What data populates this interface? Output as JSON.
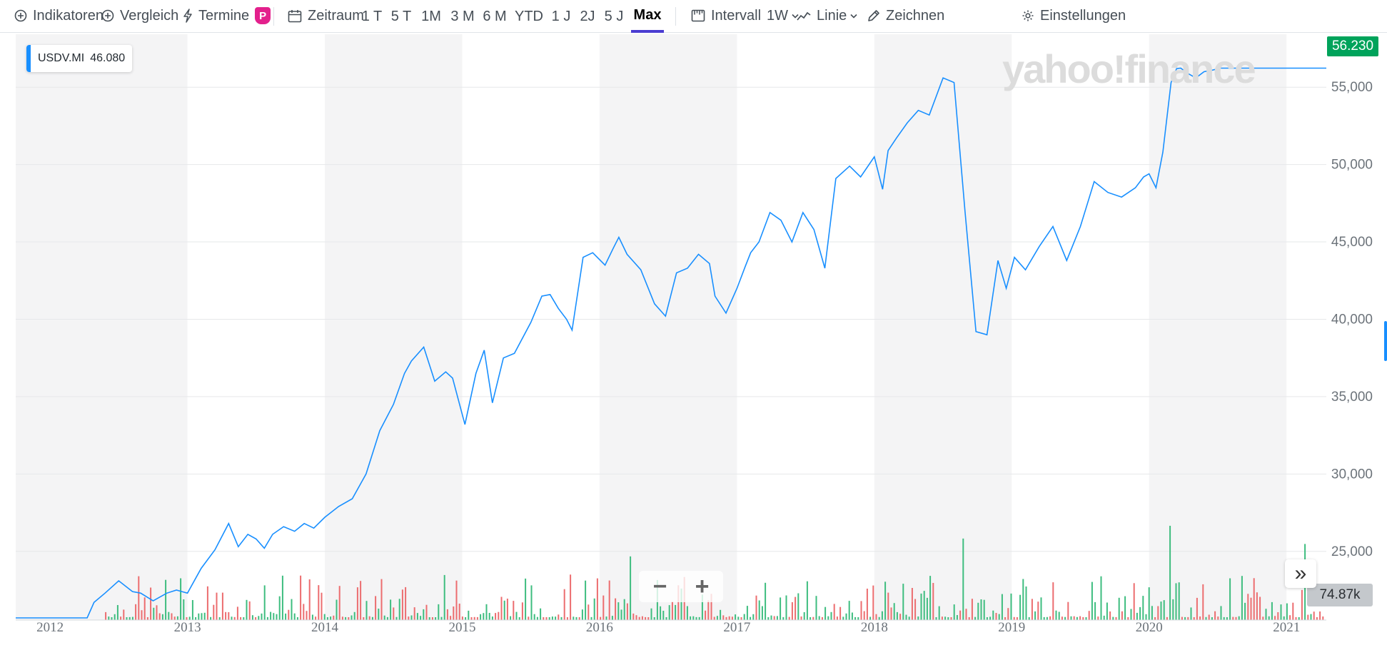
{
  "toolbar": {
    "indicators_label": "Indikatoren",
    "compare_label": "Vergleich",
    "events_label": "Termine",
    "events_badge": "P",
    "range_label": "Zeitraum",
    "ranges": [
      "1 T",
      "5 T",
      "1M",
      "3 M",
      "6 M",
      "YTD",
      "1 J",
      "2J",
      "5 J",
      "Max"
    ],
    "active_range": "Max",
    "interval_label": "Intervall",
    "interval_value": "1W",
    "chart_type_label": "Linie",
    "draw_label": "Zeichnen",
    "settings_label": "Einstellungen"
  },
  "legend": {
    "symbol": "USDV.MI",
    "value": "46.080"
  },
  "watermark": "yahoo!finance",
  "last_price": "56.230",
  "volume_label": "74.87k",
  "zoom": {
    "minus": "−",
    "plus": "+"
  },
  "expand_icon": "»",
  "colors": {
    "line": "#188fff",
    "volume_up": "#3ebd7f",
    "volume_down": "#ec6d6f",
    "band": "#f4f4f5",
    "last_price_bg": "#00a35b"
  },
  "chart_data": {
    "type": "line",
    "title": "",
    "xlabel": "",
    "ylabel": "",
    "x_ticks": [
      "2012",
      "2013",
      "2014",
      "2015",
      "2016",
      "2017",
      "2018",
      "2019",
      "2020",
      "2021"
    ],
    "y_ticks": [
      "25,000",
      "30,000",
      "35,000",
      "40,000",
      "45,000",
      "50,000",
      "55,000"
    ],
    "xlim": [
      2011.75,
      2021.29
    ],
    "ylim": [
      20700,
      56900
    ],
    "grid": true,
    "series": [
      {
        "name": "USDV.MI",
        "x": [
          2011.75,
          2012.27,
          2012.32,
          2012.4,
          2012.5,
          2012.6,
          2012.66,
          2012.75,
          2012.85,
          2012.92,
          2013.0,
          2013.1,
          2013.2,
          2013.3,
          2013.37,
          2013.44,
          2013.5,
          2013.56,
          2013.62,
          2013.7,
          2013.78,
          2013.85,
          2013.92,
          2014.0,
          2014.1,
          2014.2,
          2014.3,
          2014.4,
          2014.5,
          2014.58,
          2014.63,
          2014.72,
          2014.8,
          2014.88,
          2014.93,
          2015.02,
          2015.1,
          2015.16,
          2015.22,
          2015.3,
          2015.38,
          2015.5,
          2015.58,
          2015.64,
          2015.7,
          2015.76,
          2015.8,
          2015.88,
          2015.95,
          2016.04,
          2016.1,
          2016.14,
          2016.2,
          2016.3,
          2016.4,
          2016.48,
          2016.56,
          2016.64,
          2016.72,
          2016.8,
          2016.84,
          2016.92,
          2017.0,
          2017.06,
          2017.1,
          2017.16,
          2017.24,
          2017.32,
          2017.4,
          2017.48,
          2017.56,
          2017.64,
          2017.72,
          2017.82,
          2017.9,
          2018.0,
          2018.06,
          2018.1,
          2018.16,
          2018.24,
          2018.32,
          2018.4,
          2018.5,
          2018.58,
          2018.66,
          2018.74,
          2018.82,
          2018.9,
          2018.96,
          2019.02,
          2019.1,
          2019.2,
          2019.3,
          2019.4,
          2019.5,
          2019.6,
          2019.7,
          2019.8,
          2019.9,
          2019.96,
          2020.0,
          2020.05,
          2020.1,
          2020.16,
          2020.2,
          2020.23,
          2020.28,
          2020.34,
          2020.4,
          2020.46,
          2020.52,
          2020.6,
          2020.7,
          2020.78,
          2020.84,
          2020.9,
          2020.96,
          2021.0,
          2021.06,
          2021.1,
          2021.14,
          2021.18,
          2021.22,
          2021.26,
          2021.29
        ],
        "y": [
          20700,
          20700,
          21700,
          22300,
          23100,
          22400,
          22300,
          21800,
          22300,
          22500,
          22300,
          23900,
          25100,
          26800,
          25300,
          26100,
          25800,
          25200,
          26100,
          26600,
          26300,
          26800,
          26500,
          27200,
          27900,
          28400,
          30000,
          32800,
          34500,
          36500,
          37300,
          38200,
          36000,
          36600,
          36200,
          33200,
          36500,
          38000,
          34600,
          37500,
          37800,
          39800,
          41500,
          41600,
          40700,
          40000,
          39300,
          44000,
          44300,
          43500,
          44600,
          45300,
          44200,
          43200,
          41000,
          40200,
          43000,
          43300,
          44200,
          43600,
          41500,
          40400,
          42000,
          43400,
          44300,
          45000,
          46900,
          46400,
          45000,
          46900,
          45800,
          43300,
          49100,
          49900,
          49200,
          50500,
          48400,
          50900,
          51700,
          52700,
          53500,
          53200,
          55600,
          55300,
          47000,
          39200,
          39000,
          43800,
          42000,
          44000,
          43200,
          44700,
          46000,
          43800,
          46000,
          48900,
          48200,
          47900,
          48500,
          49200,
          49400,
          48500,
          50800,
          55300,
          56200,
          56230,
          55900,
          55600,
          56000,
          56100,
          56230,
          56230,
          56230,
          56230,
          56230,
          56230,
          56230,
          56230,
          56230,
          56230,
          56230,
          56230,
          56230,
          56230,
          56230
        ]
      }
    ]
  }
}
